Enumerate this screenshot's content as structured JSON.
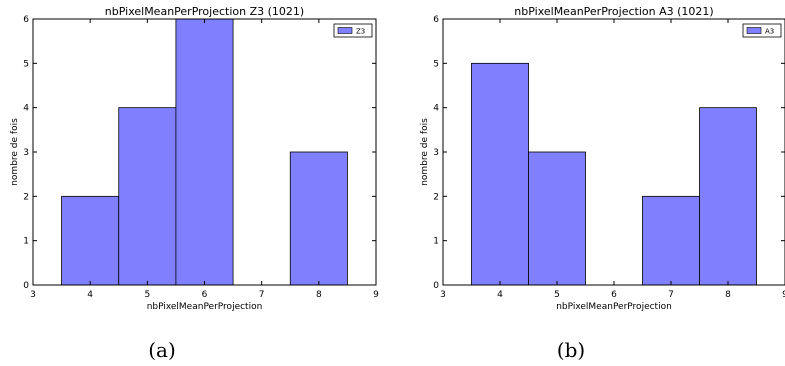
{
  "chart_data": [
    {
      "type": "bar",
      "title": "nbPixelMeanPerProjection Z3 (1021)",
      "xlabel": "nbPixelMeanPerProjection",
      "ylabel": "nombre de fois",
      "xlim": [
        3,
        9
      ],
      "ylim": [
        0,
        6
      ],
      "xticks": [
        "3",
        "4",
        "5",
        "6",
        "7",
        "8",
        "9"
      ],
      "yticks": [
        "0",
        "1",
        "2",
        "3",
        "4",
        "5",
        "6"
      ],
      "bin_edges": [
        3.5,
        4.5,
        5.5,
        6.5,
        7.5,
        8.5
      ],
      "categories": [
        "4",
        "5",
        "6",
        "7",
        "8"
      ],
      "values": [
        2,
        4,
        6,
        0,
        3
      ],
      "legend": {
        "label": "Z3",
        "position": "top-right"
      },
      "color": "#8080ff",
      "grid": false,
      "caption": "(a)"
    },
    {
      "type": "bar",
      "title": "nbPixelMeanPerProjection A3 (1021)",
      "xlabel": "nbPixelMeanPerProjection",
      "ylabel": "nombre de fois",
      "xlim": [
        3,
        9
      ],
      "ylim": [
        0,
        6
      ],
      "xticks": [
        "3",
        "4",
        "5",
        "6",
        "7",
        "8",
        "9"
      ],
      "yticks": [
        "0",
        "1",
        "2",
        "3",
        "4",
        "5",
        "6"
      ],
      "bin_edges": [
        3.5,
        4.5,
        5.5,
        6.5,
        7.5,
        8.5
      ],
      "categories": [
        "4",
        "5",
        "6",
        "7",
        "8"
      ],
      "values": [
        5,
        3,
        0,
        2,
        4
      ],
      "legend": {
        "label": "A3",
        "position": "top-right"
      },
      "color": "#8080ff",
      "grid": false,
      "caption": "(b)"
    }
  ]
}
